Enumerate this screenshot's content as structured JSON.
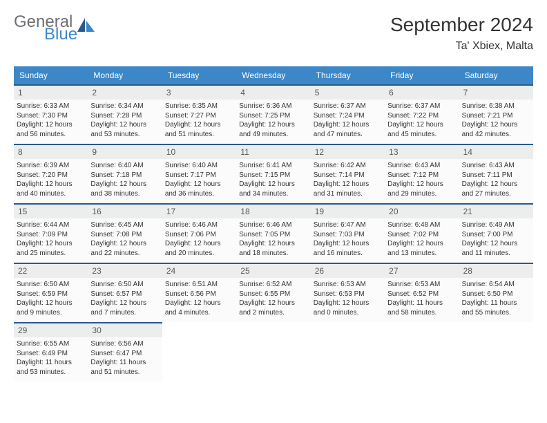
{
  "logo": {
    "text1": "General",
    "text2": "Blue"
  },
  "title": "September 2024",
  "location": "Ta' Xbiex, Malta",
  "colors": {
    "header_bg": "#3b87c8",
    "header_text": "#ffffff",
    "cell_border": "#2a5a8a",
    "daynum_bg": "#eceded",
    "daynum_text": "#57585a",
    "body_text": "#333333",
    "logo_gray": "#6d6e71",
    "logo_blue": "#3b87c8",
    "page_bg": "#ffffff"
  },
  "day_labels": [
    "Sunday",
    "Monday",
    "Tuesday",
    "Wednesday",
    "Thursday",
    "Friday",
    "Saturday"
  ],
  "weeks": [
    [
      {
        "d": "1",
        "sr": "Sunrise: 6:33 AM",
        "ss": "Sunset: 7:30 PM",
        "dl1": "Daylight: 12 hours",
        "dl2": "and 56 minutes."
      },
      {
        "d": "2",
        "sr": "Sunrise: 6:34 AM",
        "ss": "Sunset: 7:28 PM",
        "dl1": "Daylight: 12 hours",
        "dl2": "and 53 minutes."
      },
      {
        "d": "3",
        "sr": "Sunrise: 6:35 AM",
        "ss": "Sunset: 7:27 PM",
        "dl1": "Daylight: 12 hours",
        "dl2": "and 51 minutes."
      },
      {
        "d": "4",
        "sr": "Sunrise: 6:36 AM",
        "ss": "Sunset: 7:25 PM",
        "dl1": "Daylight: 12 hours",
        "dl2": "and 49 minutes."
      },
      {
        "d": "5",
        "sr": "Sunrise: 6:37 AM",
        "ss": "Sunset: 7:24 PM",
        "dl1": "Daylight: 12 hours",
        "dl2": "and 47 minutes."
      },
      {
        "d": "6",
        "sr": "Sunrise: 6:37 AM",
        "ss": "Sunset: 7:22 PM",
        "dl1": "Daylight: 12 hours",
        "dl2": "and 45 minutes."
      },
      {
        "d": "7",
        "sr": "Sunrise: 6:38 AM",
        "ss": "Sunset: 7:21 PM",
        "dl1": "Daylight: 12 hours",
        "dl2": "and 42 minutes."
      }
    ],
    [
      {
        "d": "8",
        "sr": "Sunrise: 6:39 AM",
        "ss": "Sunset: 7:20 PM",
        "dl1": "Daylight: 12 hours",
        "dl2": "and 40 minutes."
      },
      {
        "d": "9",
        "sr": "Sunrise: 6:40 AM",
        "ss": "Sunset: 7:18 PM",
        "dl1": "Daylight: 12 hours",
        "dl2": "and 38 minutes."
      },
      {
        "d": "10",
        "sr": "Sunrise: 6:40 AM",
        "ss": "Sunset: 7:17 PM",
        "dl1": "Daylight: 12 hours",
        "dl2": "and 36 minutes."
      },
      {
        "d": "11",
        "sr": "Sunrise: 6:41 AM",
        "ss": "Sunset: 7:15 PM",
        "dl1": "Daylight: 12 hours",
        "dl2": "and 34 minutes."
      },
      {
        "d": "12",
        "sr": "Sunrise: 6:42 AM",
        "ss": "Sunset: 7:14 PM",
        "dl1": "Daylight: 12 hours",
        "dl2": "and 31 minutes."
      },
      {
        "d": "13",
        "sr": "Sunrise: 6:43 AM",
        "ss": "Sunset: 7:12 PM",
        "dl1": "Daylight: 12 hours",
        "dl2": "and 29 minutes."
      },
      {
        "d": "14",
        "sr": "Sunrise: 6:43 AM",
        "ss": "Sunset: 7:11 PM",
        "dl1": "Daylight: 12 hours",
        "dl2": "and 27 minutes."
      }
    ],
    [
      {
        "d": "15",
        "sr": "Sunrise: 6:44 AM",
        "ss": "Sunset: 7:09 PM",
        "dl1": "Daylight: 12 hours",
        "dl2": "and 25 minutes."
      },
      {
        "d": "16",
        "sr": "Sunrise: 6:45 AM",
        "ss": "Sunset: 7:08 PM",
        "dl1": "Daylight: 12 hours",
        "dl2": "and 22 minutes."
      },
      {
        "d": "17",
        "sr": "Sunrise: 6:46 AM",
        "ss": "Sunset: 7:06 PM",
        "dl1": "Daylight: 12 hours",
        "dl2": "and 20 minutes."
      },
      {
        "d": "18",
        "sr": "Sunrise: 6:46 AM",
        "ss": "Sunset: 7:05 PM",
        "dl1": "Daylight: 12 hours",
        "dl2": "and 18 minutes."
      },
      {
        "d": "19",
        "sr": "Sunrise: 6:47 AM",
        "ss": "Sunset: 7:03 PM",
        "dl1": "Daylight: 12 hours",
        "dl2": "and 16 minutes."
      },
      {
        "d": "20",
        "sr": "Sunrise: 6:48 AM",
        "ss": "Sunset: 7:02 PM",
        "dl1": "Daylight: 12 hours",
        "dl2": "and 13 minutes."
      },
      {
        "d": "21",
        "sr": "Sunrise: 6:49 AM",
        "ss": "Sunset: 7:00 PM",
        "dl1": "Daylight: 12 hours",
        "dl2": "and 11 minutes."
      }
    ],
    [
      {
        "d": "22",
        "sr": "Sunrise: 6:50 AM",
        "ss": "Sunset: 6:59 PM",
        "dl1": "Daylight: 12 hours",
        "dl2": "and 9 minutes."
      },
      {
        "d": "23",
        "sr": "Sunrise: 6:50 AM",
        "ss": "Sunset: 6:57 PM",
        "dl1": "Daylight: 12 hours",
        "dl2": "and 7 minutes."
      },
      {
        "d": "24",
        "sr": "Sunrise: 6:51 AM",
        "ss": "Sunset: 6:56 PM",
        "dl1": "Daylight: 12 hours",
        "dl2": "and 4 minutes."
      },
      {
        "d": "25",
        "sr": "Sunrise: 6:52 AM",
        "ss": "Sunset: 6:55 PM",
        "dl1": "Daylight: 12 hours",
        "dl2": "and 2 minutes."
      },
      {
        "d": "26",
        "sr": "Sunrise: 6:53 AM",
        "ss": "Sunset: 6:53 PM",
        "dl1": "Daylight: 12 hours",
        "dl2": "and 0 minutes."
      },
      {
        "d": "27",
        "sr": "Sunrise: 6:53 AM",
        "ss": "Sunset: 6:52 PM",
        "dl1": "Daylight: 11 hours",
        "dl2": "and 58 minutes."
      },
      {
        "d": "28",
        "sr": "Sunrise: 6:54 AM",
        "ss": "Sunset: 6:50 PM",
        "dl1": "Daylight: 11 hours",
        "dl2": "and 55 minutes."
      }
    ],
    [
      {
        "d": "29",
        "sr": "Sunrise: 6:55 AM",
        "ss": "Sunset: 6:49 PM",
        "dl1": "Daylight: 11 hours",
        "dl2": "and 53 minutes."
      },
      {
        "d": "30",
        "sr": "Sunrise: 6:56 AM",
        "ss": "Sunset: 6:47 PM",
        "dl1": "Daylight: 11 hours",
        "dl2": "and 51 minutes."
      },
      null,
      null,
      null,
      null,
      null
    ]
  ]
}
